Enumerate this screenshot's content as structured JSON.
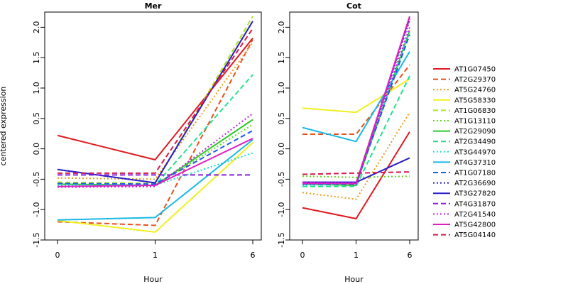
{
  "chart_data": {
    "type": "line",
    "ylabel": "centered expression",
    "xlabel": "Hour",
    "x_ticks": [
      "0",
      "1",
      "6"
    ],
    "ylim": [
      -1.5,
      2.25
    ],
    "y_ticks": [
      "-1.5",
      "-1.0",
      "-0.5",
      "0.0",
      "0.5",
      "1.0",
      "1.5",
      "2.0"
    ],
    "series_styles": [
      {
        "name": "AT1G07450",
        "color": "#E0191E",
        "dash": "solid"
      },
      {
        "name": "AT2G29370",
        "color": "#E8501A",
        "dash": "long"
      },
      {
        "name": "AT5G24760",
        "color": "#F29A14",
        "dash": "dot"
      },
      {
        "name": "AT5G58330",
        "color": "#F0F020",
        "dash": "solid"
      },
      {
        "name": "AT1G06830",
        "color": "#A8E61A",
        "dash": "long"
      },
      {
        "name": "AT1G13110",
        "color": "#5CDC1F",
        "dash": "dot"
      },
      {
        "name": "AT2G29090",
        "color": "#2EC92A",
        "dash": "solid"
      },
      {
        "name": "AT2G34490",
        "color": "#1FE08C",
        "dash": "long"
      },
      {
        "name": "AT3G44970",
        "color": "#1AE0D0",
        "dash": "dot"
      },
      {
        "name": "AT4G37310",
        "color": "#1AB8E6",
        "dash": "solid"
      },
      {
        "name": "AT1G07180",
        "color": "#1F5CE6",
        "dash": "long"
      },
      {
        "name": "AT2G36690",
        "color": "#1F1FD6",
        "dash": "dot"
      },
      {
        "name": "AT3G27820",
        "color": "#2A1FC8",
        "dash": "solid"
      },
      {
        "name": "AT4G31870",
        "color": "#8A1FE0",
        "dash": "long"
      },
      {
        "name": "AT2G41540",
        "color": "#C21FE0",
        "dash": "dot"
      },
      {
        "name": "AT5G42800",
        "color": "#E01FC8",
        "dash": "solid"
      },
      {
        "name": "AT5G04140",
        "color": "#D6194F",
        "dash": "long"
      }
    ],
    "panels": [
      {
        "title": "Mer",
        "series": [
          {
            "name": "AT1G07450",
            "values": [
              0.22,
              -0.18,
              1.82
            ]
          },
          {
            "name": "AT2G29370",
            "values": [
              -1.2,
              -1.26,
              1.8
            ]
          },
          {
            "name": "AT5G24760",
            "values": [
              -0.48,
              -0.5,
              1.75
            ]
          },
          {
            "name": "AT5G58330",
            "values": [
              -1.18,
              -1.37,
              0.1
            ]
          },
          {
            "name": "AT1G06830",
            "values": [
              -0.55,
              -0.57,
              2.18
            ]
          },
          {
            "name": "AT1G13110",
            "values": [
              -0.6,
              -0.6,
              0.4
            ]
          },
          {
            "name": "AT2G29090",
            "values": [
              -0.58,
              -0.6,
              0.48
            ]
          },
          {
            "name": "AT2G34490",
            "values": [
              -0.58,
              -0.6,
              1.22
            ]
          },
          {
            "name": "AT3G44970",
            "values": [
              -0.6,
              -0.6,
              -0.07
            ]
          },
          {
            "name": "AT4G37310",
            "values": [
              -1.17,
              -1.13,
              0.15
            ]
          },
          {
            "name": "AT1G07180",
            "values": [
              -0.57,
              -0.58,
              0.3
            ]
          },
          {
            "name": "AT2G36690",
            "values": [
              -0.34,
              -0.56,
              2.1
            ]
          },
          {
            "name": "AT3G27820",
            "values": [
              -0.34,
              -0.56,
              2.1
            ]
          },
          {
            "name": "AT4G31870",
            "values": [
              -0.43,
              -0.43,
              -0.43
            ]
          },
          {
            "name": "AT2G41540",
            "values": [
              -0.63,
              -0.62,
              0.58
            ]
          },
          {
            "name": "AT5G42800",
            "values": [
              -0.62,
              -0.6,
              0.17
            ]
          },
          {
            "name": "AT5G04140",
            "values": [
              -0.4,
              -0.4,
              1.98
            ]
          }
        ]
      },
      {
        "title": "Cot",
        "series": [
          {
            "name": "AT1G07450",
            "values": [
              -0.97,
              -1.15,
              0.28
            ]
          },
          {
            "name": "AT2G29370",
            "values": [
              0.24,
              0.24,
              1.38
            ]
          },
          {
            "name": "AT5G24760",
            "values": [
              -0.72,
              -0.83,
              0.6
            ]
          },
          {
            "name": "AT5G58330",
            "values": [
              0.67,
              0.6,
              1.15
            ]
          },
          {
            "name": "AT1G06830",
            "values": [
              -0.55,
              -0.56,
              2.18
            ]
          },
          {
            "name": "AT1G13110",
            "values": [
              -0.45,
              -0.47,
              -0.45
            ]
          },
          {
            "name": "AT2G29090",
            "values": [
              -0.58,
              -0.6,
              1.95
            ]
          },
          {
            "name": "AT2G34490",
            "values": [
              -0.62,
              -0.62,
              1.2
            ]
          },
          {
            "name": "AT3G44970",
            "values": [
              -0.6,
              -0.58,
              1.92
            ]
          },
          {
            "name": "AT4G37310",
            "values": [
              0.35,
              0.12,
              1.6
            ]
          },
          {
            "name": "AT1G07180",
            "values": [
              -0.58,
              -0.58,
              1.88
            ]
          },
          {
            "name": "AT2G36690",
            "values": [
              -0.55,
              -0.58,
              2.12
            ]
          },
          {
            "name": "AT3G27820",
            "values": [
              -0.55,
              -0.55,
              -0.15
            ]
          },
          {
            "name": "AT4G31870",
            "values": [
              -0.55,
              -0.58,
              2.15
            ]
          },
          {
            "name": "AT2G41540",
            "values": [
              -0.56,
              -0.56,
              2.0
            ]
          },
          {
            "name": "AT5G42800",
            "values": [
              -0.57,
              -0.57,
              2.18
            ]
          },
          {
            "name": "AT5G04140",
            "values": [
              -0.42,
              -0.4,
              -0.38
            ]
          }
        ]
      }
    ],
    "legend": {
      "position": "right"
    }
  }
}
